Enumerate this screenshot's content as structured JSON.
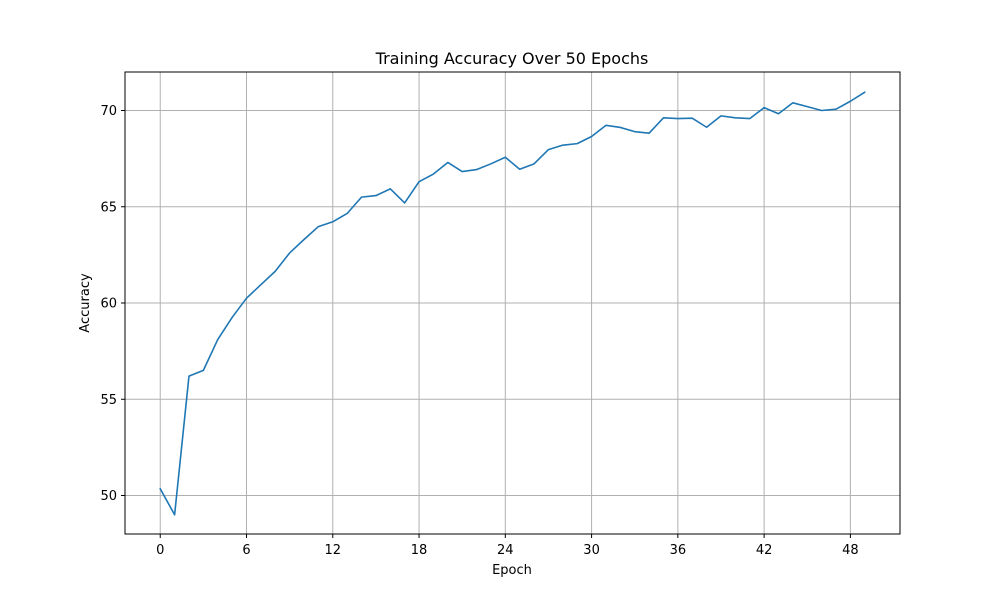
{
  "chart_data": {
    "type": "line",
    "title": "Training Accuracy Over 50 Epochs",
    "xlabel": "Epoch",
    "ylabel": "Accuracy",
    "xlim": [
      -2.45,
      51.45
    ],
    "ylim": [
      48.0,
      72.0
    ],
    "xticks": [
      0,
      6,
      12,
      18,
      24,
      30,
      36,
      42,
      48
    ],
    "yticks": [
      50,
      55,
      60,
      65,
      70
    ],
    "grid": true,
    "color": "#1f77b4",
    "series": [
      {
        "x": [
          0,
          1,
          2,
          3,
          4,
          5,
          6,
          7,
          8,
          9,
          10,
          11,
          12,
          13,
          14,
          15,
          16,
          17,
          18,
          19,
          20,
          21,
          22,
          23,
          24,
          25,
          26,
          27,
          28,
          29,
          30,
          31,
          32,
          33,
          34,
          35,
          36,
          37,
          38,
          39,
          40,
          41,
          42,
          43,
          44,
          45,
          46,
          47,
          48,
          49
        ],
        "values": [
          50.35,
          49.0,
          56.2,
          56.5,
          58.1,
          59.25,
          60.25,
          60.95,
          61.65,
          62.6,
          63.3,
          63.97,
          64.22,
          64.65,
          65.5,
          65.58,
          65.93,
          65.2,
          66.3,
          66.7,
          67.3,
          66.83,
          66.93,
          67.23,
          67.57,
          66.95,
          67.23,
          67.97,
          68.2,
          68.28,
          68.65,
          69.23,
          69.12,
          68.9,
          68.82,
          69.62,
          69.58,
          69.6,
          69.13,
          69.72,
          69.62,
          69.58,
          70.15,
          69.83,
          70.4,
          70.2,
          70.0,
          70.07,
          70.48,
          70.95
        ]
      }
    ]
  }
}
